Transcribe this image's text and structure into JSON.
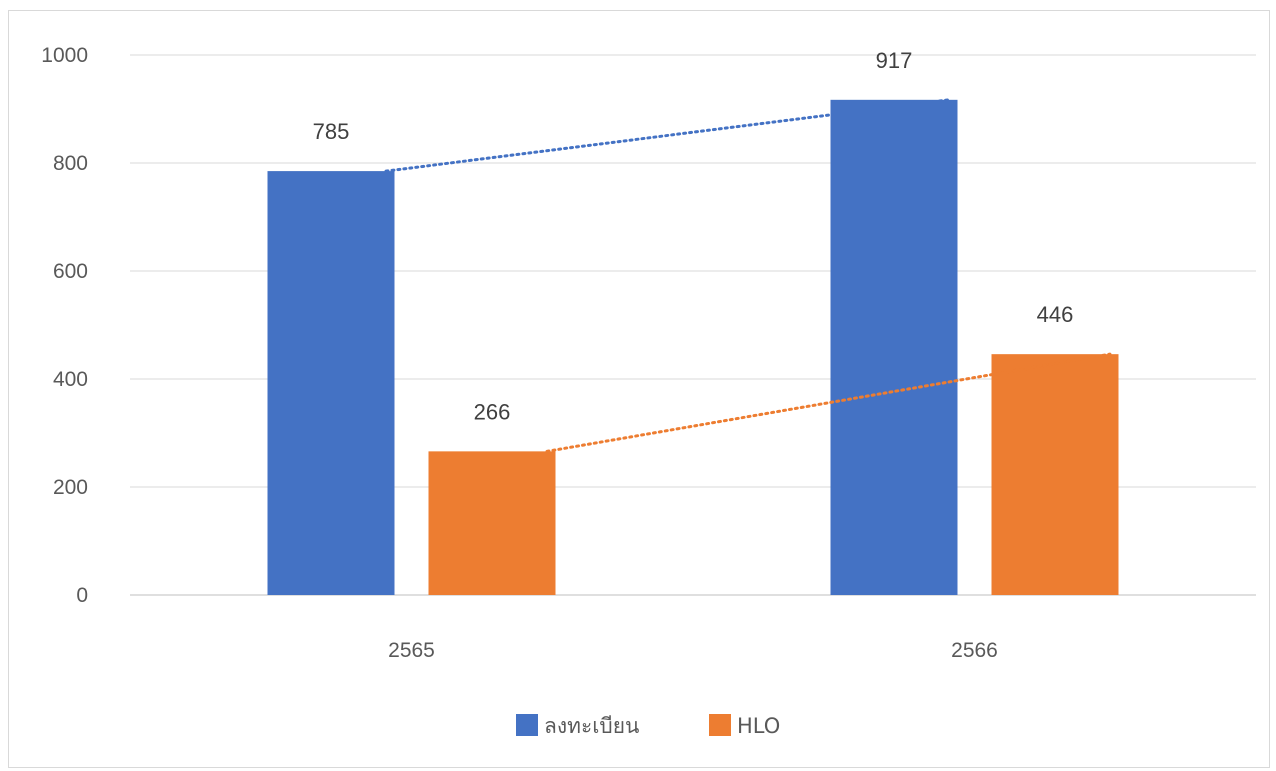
{
  "chart_data": {
    "type": "bar",
    "categories": [
      "2565",
      "2566"
    ],
    "series": [
      {
        "name": "ลงทะเบียน",
        "values": [
          785,
          917
        ],
        "color": "#4472C4"
      },
      {
        "name": "HLO",
        "values": [
          266,
          446
        ],
        "color": "#ED7D31"
      }
    ],
    "ylim": [
      0,
      1000
    ],
    "yticks": [
      0,
      200,
      400,
      600,
      800,
      1000
    ],
    "data_labels": true,
    "trendlines": true,
    "grid": true,
    "legend": "bottom",
    "title": "",
    "xlabel": "",
    "ylabel": ""
  }
}
